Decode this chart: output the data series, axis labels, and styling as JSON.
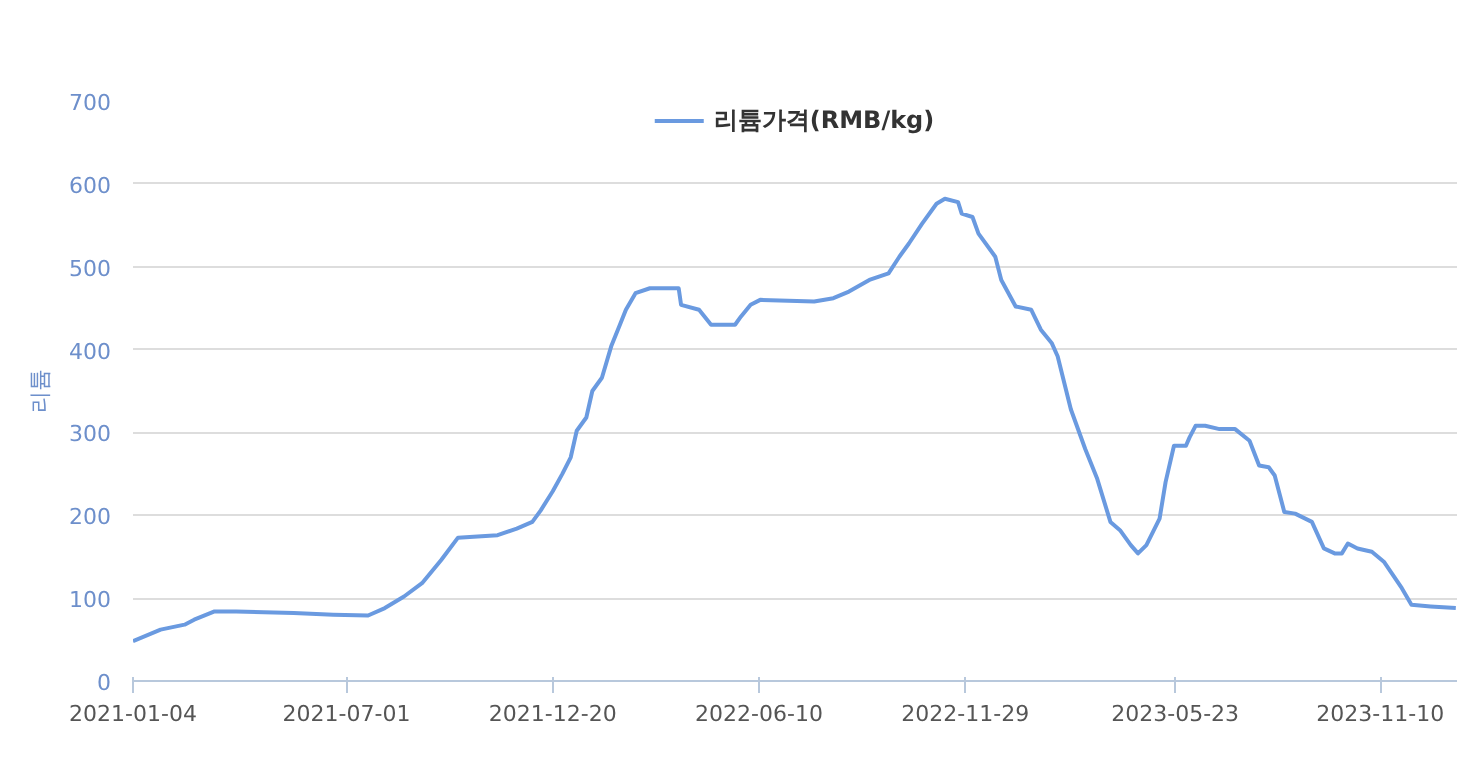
{
  "chart_data": {
    "type": "line",
    "ylabel": "리튬",
    "x": [
      "2021-01-04",
      "2021-01-27",
      "2021-02-16",
      "2021-02-24",
      "2021-03-13",
      "2021-03-31",
      "2021-05-18",
      "2021-06-20",
      "2021-07-19",
      "2021-08-02",
      "2021-08-18",
      "2021-09-02",
      "2021-09-18",
      "2021-10-02",
      "2021-10-15",
      "2021-11-04",
      "2021-11-20",
      "2021-12-03",
      "2021-12-10",
      "2021-12-20",
      "2021-12-28",
      "2022-01-04",
      "2022-01-09",
      "2022-01-17",
      "2022-01-22",
      "2022-01-30",
      "2022-02-07",
      "2022-02-14",
      "2022-02-19",
      "2022-02-27",
      "2022-03-11",
      "2022-04-04",
      "2022-04-06",
      "2022-04-21",
      "2022-05-01",
      "2022-05-21",
      "2022-05-26",
      "2022-06-03",
      "2022-06-11",
      "2022-07-26",
      "2022-08-11",
      "2022-08-24",
      "2022-09-10",
      "2022-09-26",
      "2022-10-05",
      "2022-10-13",
      "2022-10-24",
      "2022-11-05",
      "2022-11-12",
      "2022-11-23",
      "2022-11-26",
      "2022-12-05",
      "2022-12-10",
      "2022-12-24",
      "2022-12-29",
      "2023-01-10",
      "2023-01-23",
      "2023-01-31",
      "2023-02-09",
      "2023-02-14",
      "2023-02-25",
      "2023-03-09",
      "2023-03-19",
      "2023-03-30",
      "2023-04-07",
      "2023-04-16",
      "2023-04-22",
      "2023-04-29",
      "2023-05-10",
      "2023-05-15",
      "2023-05-22",
      "2023-06-01",
      "2023-06-04",
      "2023-06-09",
      "2023-06-17",
      "2023-06-29",
      "2023-07-12",
      "2023-07-24",
      "2023-08-01",
      "2023-08-09",
      "2023-08-14",
      "2023-08-22",
      "2023-08-31",
      "2023-09-14",
      "2023-09-24",
      "2023-10-03",
      "2023-10-09",
      "2023-10-14",
      "2023-10-22",
      "2023-11-03",
      "2023-11-13",
      "2023-11-28",
      "2023-12-06",
      "2023-12-22",
      "2024-01-12"
    ],
    "series": [
      {
        "name": "리튬가격(RMB/kg)",
        "color": "#6a9ae0",
        "values": [
          48,
          62,
          68,
          74,
          84,
          84,
          82,
          80,
          79,
          88,
          102,
          118,
          146,
          173,
          174,
          176,
          184,
          192,
          206,
          229,
          250,
          270,
          302,
          318,
          350,
          366,
          405,
          430,
          448,
          468,
          474,
          474,
          454,
          448,
          430,
          430,
          440,
          454,
          460,
          458,
          462,
          470,
          484,
          492,
          512,
          528,
          552,
          576,
          582,
          578,
          564,
          560,
          540,
          512,
          484,
          452,
          448,
          424,
          408,
          392,
          328,
          280,
          244,
          192,
          182,
          164,
          154,
          164,
          196,
          240,
          284,
          284,
          294,
          308,
          308,
          304,
          304,
          290,
          260,
          258,
          248,
          204,
          202,
          192,
          160,
          154,
          154,
          166,
          160,
          156,
          144,
          112,
          92,
          90,
          88
        ]
      }
    ],
    "xlim": [
      "2021-01-04",
      "2024-01-13"
    ],
    "xticks": [
      "2021-01-04",
      "2021-07-01",
      "2021-12-20",
      "2022-06-10",
      "2022-11-29",
      "2023-05-23",
      "2023-11-10"
    ],
    "ylim": [
      0,
      700
    ],
    "yticks": [
      0,
      100,
      200,
      300,
      400,
      500,
      600,
      700
    ],
    "grid": "y",
    "legend": "top",
    "marker": "none",
    "line_style": "solid"
  }
}
